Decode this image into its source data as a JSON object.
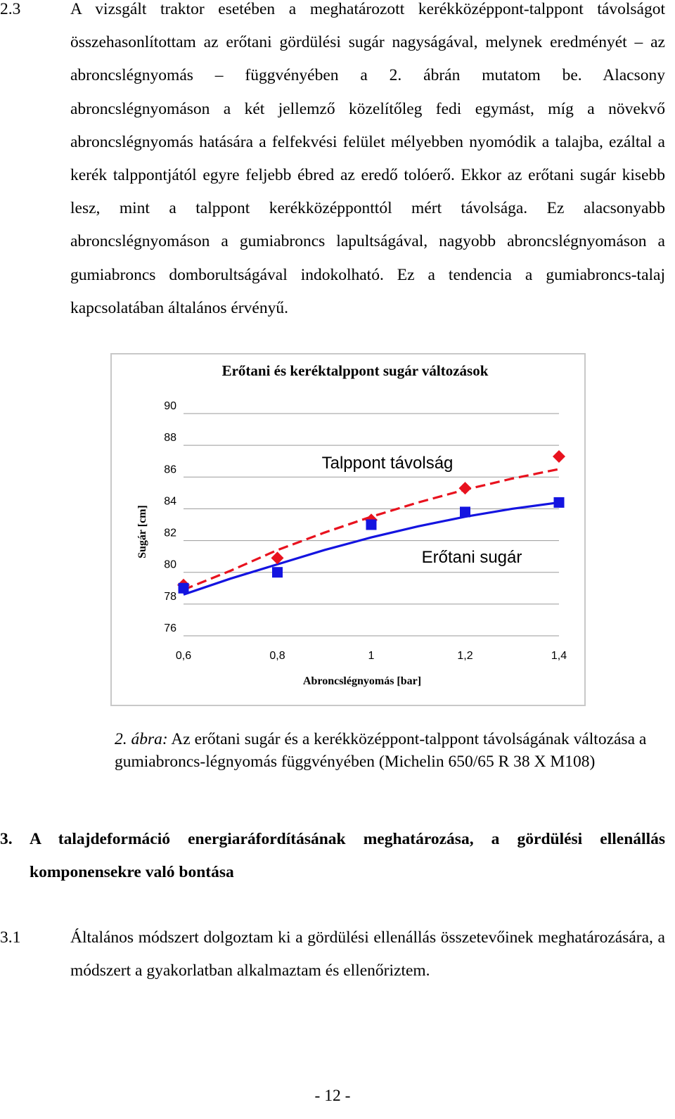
{
  "section_2_3": {
    "number": "2.3",
    "text": "A vizsgált traktor esetében a meghatározott kerékközéppont-talppont távolságot összehasonlítottam az erőtani gördülési sugár nagyságával, melynek eredményét – az abroncslégnyomás – függvényében a 2. ábrán mutatom be. Alacsony abroncslégnyomáson a két jellemző közelítőleg fedi egymást, míg a növekvő abroncslégnyomás hatására a felfekvési felület mélyebben nyomódik a talajba, ezáltal a kerék talppontjától egyre feljebb ébred az eredő tolóerő. Ekkor az erőtani sugár kisebb lesz, mint a talppont kerékközépponttól mért távolsága. Ez alacsonyabb abroncslégnyomáson a gumiabroncs lapultságával, nagyobb abroncslégnyomáson a gumiabroncs domborultságával indokolható. Ez a tendencia a gumiabroncs-talaj kapcsolatában általános érvényű."
  },
  "chart_data": {
    "type": "line",
    "title": "Erőtani és keréktalppont sugár változások",
    "xlabel": "Abroncslégnyomás [bar]",
    "ylabel": "Sugár [cm]",
    "xlim": [
      0.6,
      1.4
    ],
    "ylim": [
      76,
      90
    ],
    "x_ticks": [
      "0,6",
      "0,8",
      "1",
      "1,2",
      "1,4"
    ],
    "y_ticks": [
      "90",
      "88",
      "86",
      "84",
      "82",
      "80",
      "78",
      "76"
    ],
    "annotations": [
      "Talppont távolság",
      "Erőtani sugár"
    ],
    "series": [
      {
        "label": "Talppont távolság",
        "marker": "diamond",
        "color": "#e8121e",
        "points": [
          [
            0.6,
            79.2
          ],
          [
            0.8,
            80.9
          ],
          [
            1.0,
            83.3
          ],
          [
            1.2,
            85.3
          ],
          [
            1.4,
            87.3
          ]
        ],
        "trend": [
          [
            0.6,
            78.9
          ],
          [
            0.7,
            80.1
          ],
          [
            0.8,
            81.4
          ],
          [
            0.9,
            82.5
          ],
          [
            1.0,
            83.5
          ],
          [
            1.1,
            84.4
          ],
          [
            1.2,
            85.2
          ],
          [
            1.3,
            85.9
          ],
          [
            1.4,
            86.5
          ]
        ]
      },
      {
        "label": "Erőtani sugár",
        "marker": "square",
        "color": "#1414e0",
        "points": [
          [
            0.6,
            79.0
          ],
          [
            0.8,
            80.0
          ],
          [
            1.0,
            83.0
          ],
          [
            1.2,
            83.8
          ],
          [
            1.4,
            84.4
          ]
        ],
        "trend": [
          [
            0.6,
            78.6
          ],
          [
            0.7,
            79.6
          ],
          [
            0.8,
            80.5
          ],
          [
            0.9,
            81.4
          ],
          [
            1.0,
            82.2
          ],
          [
            1.1,
            82.9
          ],
          [
            1.2,
            83.5
          ],
          [
            1.3,
            84.0
          ],
          [
            1.4,
            84.4
          ]
        ]
      }
    ],
    "colors": {
      "talppont": "#e8121e",
      "erotani": "#1414e0",
      "grid": "#9a9a9a",
      "border": "#c8c8c8"
    }
  },
  "caption": {
    "lead": "2. ábra:",
    "text": " Az erőtani sugár és a kerékközéppont-talppont távolságának változása a gumiabroncs-légnyomás függvényében (Michelin 650/65 R 38 X M108)"
  },
  "section_3": {
    "number": "3.",
    "title": "A talajdeformáció energiaráfordításának meghatározása, a gördülési ellenállás komponensekre való bontása"
  },
  "section_3_1": {
    "number": "3.1",
    "text": "Általános módszert dolgoztam ki a gördülési ellenállás összetevőinek meghatározására, a módszert a gyakorlatban alkalmaztam és ellenőriztem."
  },
  "page_number": "- 12 -"
}
